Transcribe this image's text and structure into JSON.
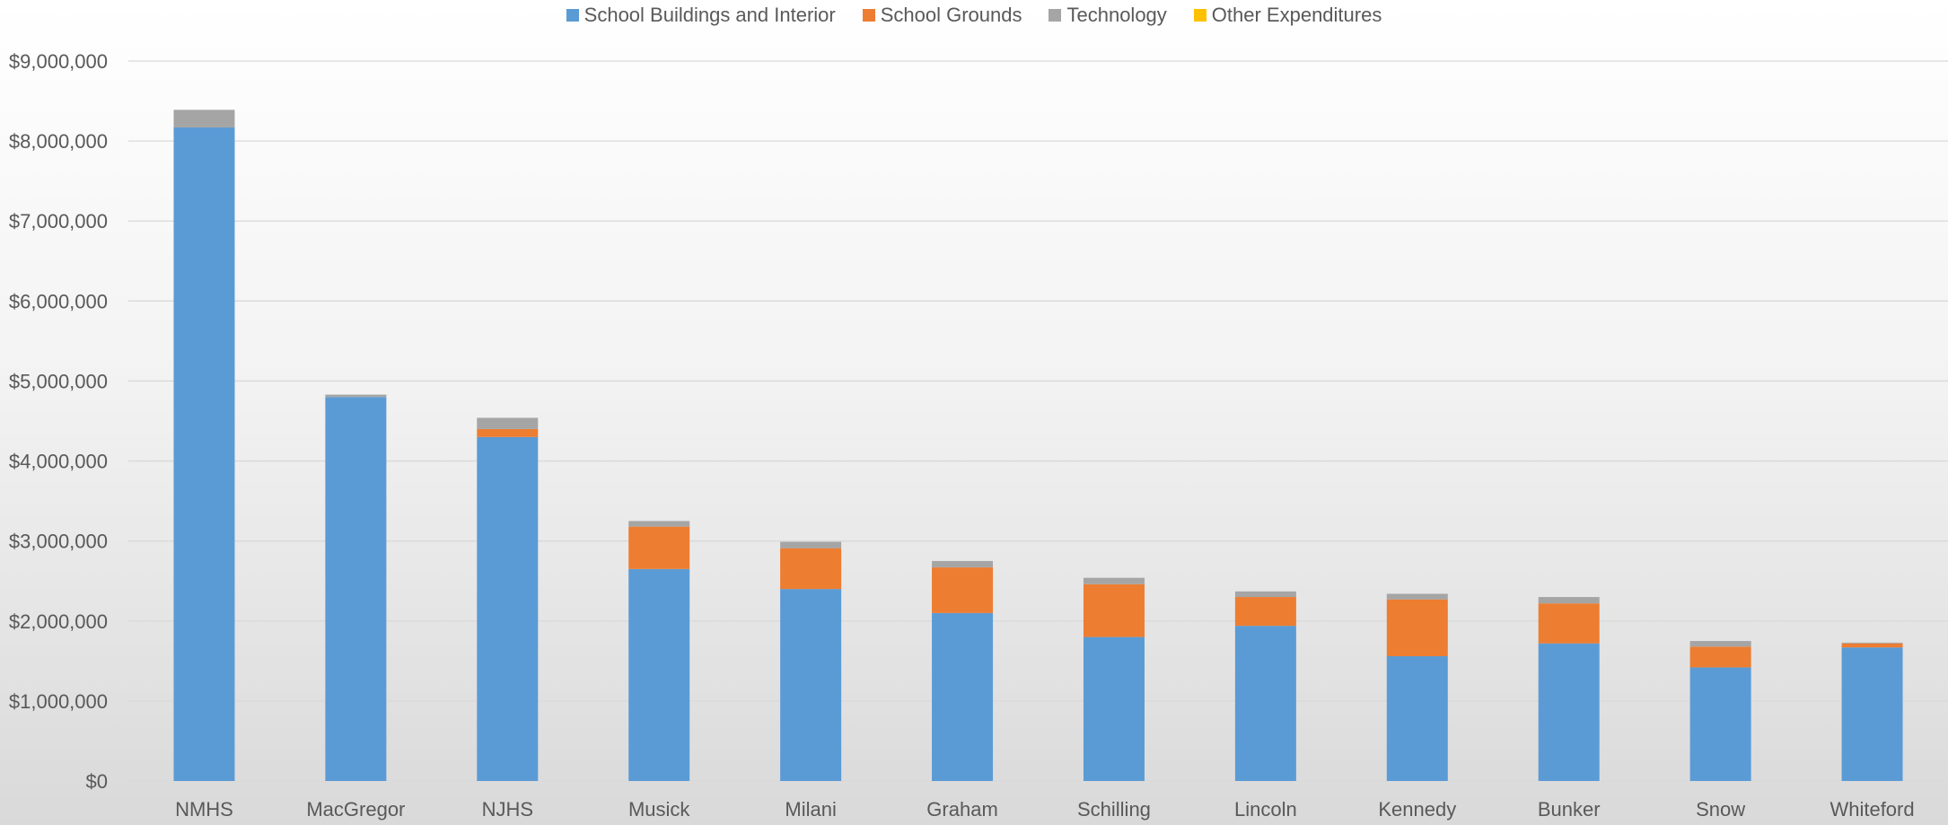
{
  "chart_data": {
    "type": "bar",
    "stacked": true,
    "categories": [
      "NMHS",
      "MacGregor",
      "NJHS",
      "Musick",
      "Milani",
      "Graham",
      "Schilling",
      "Lincoln",
      "Kennedy",
      "Bunker",
      "Snow",
      "Whiteford"
    ],
    "series": [
      {
        "name": "School Buildings and Interior",
        "color": "#5B9BD5",
        "values": [
          8170000,
          4800000,
          4300000,
          2650000,
          2400000,
          2100000,
          1800000,
          1940000,
          1560000,
          1720000,
          1420000,
          1670000
        ]
      },
      {
        "name": "School Grounds",
        "color": "#ED7D31",
        "values": [
          0,
          0,
          100000,
          530000,
          510000,
          570000,
          660000,
          360000,
          710000,
          500000,
          260000,
          50000
        ]
      },
      {
        "name": "Technology",
        "color": "#A5A5A5",
        "values": [
          220000,
          30000,
          140000,
          70000,
          80000,
          80000,
          80000,
          70000,
          70000,
          80000,
          70000,
          10000
        ]
      },
      {
        "name": "Other Expenditures",
        "color": "#FFC000",
        "values": [
          0,
          0,
          0,
          0,
          0,
          0,
          0,
          0,
          0,
          0,
          0,
          0
        ]
      }
    ],
    "ylim": [
      0,
      9000000
    ],
    "yticks": [
      0,
      1000000,
      2000000,
      3000000,
      4000000,
      5000000,
      6000000,
      7000000,
      8000000,
      9000000
    ],
    "ytick_labels": [
      "$0",
      "$1,000,000",
      "$2,000,000",
      "$3,000,000",
      "$4,000,000",
      "$5,000,000",
      "$6,000,000",
      "$7,000,000",
      "$8,000,000",
      "$9,000,000"
    ],
    "grid": true,
    "legend_position": "top"
  }
}
